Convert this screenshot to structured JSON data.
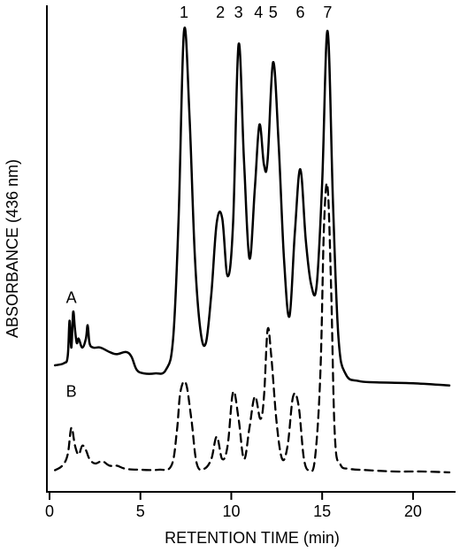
{
  "chart_data": {
    "type": "line",
    "title": "",
    "xlabel": "RETENTION TIME (min)",
    "ylabel": "ABSORBANCE (436 nm)",
    "xlim": [
      0,
      22
    ],
    "ylim": [
      0,
      100
    ],
    "xticks": [
      0,
      5,
      10,
      15,
      20
    ],
    "peak_labels": [
      {
        "text": "1",
        "x": 7.4
      },
      {
        "text": "2",
        "x": 9.4
      },
      {
        "text": "3",
        "x": 10.4
      },
      {
        "text": "4",
        "x": 11.5
      },
      {
        "text": "5",
        "x": 12.3
      },
      {
        "text": "6",
        "x": 13.8
      },
      {
        "text": "7",
        "x": 15.3
      }
    ],
    "series": [
      {
        "name": "A",
        "style": "solid",
        "label_at": [
          1.2,
          38
        ],
        "x": [
          0.3,
          0.8,
          1.0,
          1.1,
          1.2,
          1.3,
          1.4,
          1.5,
          1.6,
          1.8,
          2.0,
          2.1,
          2.2,
          2.4,
          2.8,
          3.3,
          3.7,
          4.2,
          4.5,
          4.8,
          5.2,
          5.8,
          6.4,
          6.8,
          7.1,
          7.4,
          7.7,
          8.0,
          8.3,
          8.6,
          8.9,
          9.2,
          9.5,
          9.8,
          10.1,
          10.4,
          10.7,
          11.0,
          11.3,
          11.55,
          11.8,
          12.0,
          12.3,
          12.6,
          12.9,
          13.2,
          13.5,
          13.8,
          14.1,
          14.4,
          14.7,
          15.0,
          15.3,
          15.6,
          15.9,
          16.3,
          17.0,
          18.0,
          20.0,
          22.0
        ],
        "y": [
          24,
          24.5,
          26,
          34,
          28,
          36,
          32,
          29,
          30,
          28,
          30,
          33,
          29,
          28,
          28,
          27,
          26.5,
          27,
          26,
          23,
          22.2,
          22.2,
          23,
          30,
          57,
          99,
          80,
          48,
          32,
          29,
          40,
          56,
          57,
          44,
          56,
          96,
          70,
          48,
          64,
          78,
          69,
          70,
          92,
          74,
          48,
          35,
          54,
          68,
          52,
          42,
          42,
          65,
          99,
          60,
          30,
          22,
          20.5,
          20.2,
          20,
          19.5
        ]
      },
      {
        "name": "B",
        "style": "dashed",
        "label_at": [
          1.2,
          17
        ],
        "x": [
          0.3,
          0.7,
          1.0,
          1.2,
          1.4,
          1.6,
          1.8,
          2.0,
          2.2,
          2.5,
          2.9,
          3.3,
          3.7,
          4.2,
          5.0,
          6.0,
          6.7,
          7.0,
          7.2,
          7.5,
          7.8,
          8.1,
          8.5,
          8.9,
          9.2,
          9.5,
          9.8,
          10.1,
          10.4,
          10.7,
          11.0,
          11.3,
          11.6,
          11.8,
          12.0,
          12.2,
          12.5,
          12.8,
          13.1,
          13.4,
          13.7,
          14.0,
          14.3,
          14.6,
          14.9,
          15.1,
          15.3,
          15.5,
          15.7,
          16.0,
          16.5,
          17.5,
          19.0,
          20.5,
          22.0
        ],
        "y": [
          0.5,
          1.5,
          4,
          10,
          6,
          4,
          6,
          5,
          3,
          2,
          2.5,
          1.5,
          1.5,
          0.8,
          0.6,
          0.6,
          1.5,
          9,
          18,
          20,
          12,
          2,
          0.8,
          3,
          8,
          3,
          6,
          18,
          12,
          3,
          10,
          17,
          12,
          17,
          32,
          26,
          11,
          3,
          6,
          17,
          15,
          3,
          0.5,
          3,
          22,
          55,
          64,
          40,
          8,
          1.8,
          0.8,
          0.5,
          0.2,
          0.2,
          0
        ]
      }
    ]
  }
}
